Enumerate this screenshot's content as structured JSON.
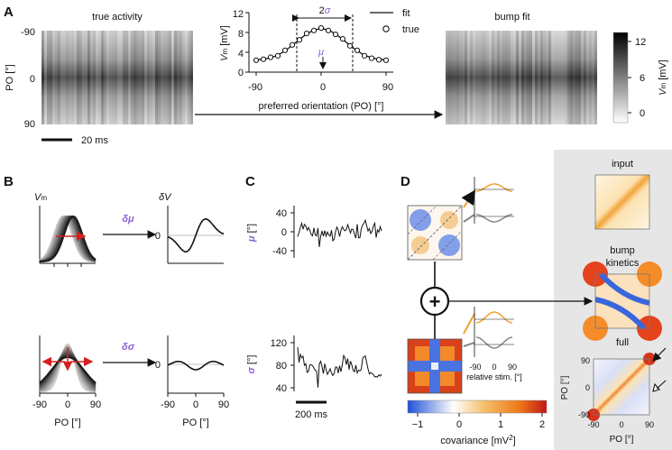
{
  "panels": {
    "a": "A",
    "b": "B",
    "c": "C",
    "d": "D"
  },
  "panel_a": {
    "true_title": "true activity",
    "bump_title": "bump fit",
    "ylabel": "PO [°]",
    "yticks": [
      "-90",
      "0",
      "90"
    ],
    "scale_label": "20 ms",
    "inset_xlabel": "preferred orientation (PO) [°]",
    "inset_ylabel_v": "V",
    "inset_ylabel_sub": "m",
    "inset_ylabel_unit": "[mV]",
    "legend_fit": "fit",
    "legend_true": "true",
    "two": "2",
    "sigma": "σ",
    "mu": "μ",
    "colorbar_ticks": [
      "12",
      "6",
      "0"
    ],
    "colorbar_label_v": "V",
    "colorbar_label_sub": "m",
    "colorbar_label_unit": "[mV]"
  },
  "panel_b": {
    "vm_label_v": "V",
    "vm_label_sub": "m",
    "dv_label": "δV",
    "dmu_label": "δμ",
    "dsigma_label": "δσ",
    "zero": "0",
    "xticks": [
      "-90",
      "0",
      "90"
    ],
    "xlabel": "PO [°]"
  },
  "panel_c": {
    "mu_label": "μ",
    "sigma_label": "σ",
    "deg_unit": "[°]",
    "mu_ticks": [
      "40",
      "0",
      "-40"
    ],
    "sigma_ticks": [
      "120",
      "80",
      "40"
    ],
    "scale_label": "200 ms"
  },
  "panel_d": {
    "plus": "+",
    "relative_stim_label": "relative stim. [°]",
    "relative_stim_ticks": [
      "-90",
      "0",
      "90"
    ],
    "colorbar_ticks": [
      "−1",
      "0",
      "1",
      "2"
    ],
    "colorbar_label": "covariance [mV",
    "colorbar_label_sup": "2",
    "colorbar_label_end": "]",
    "input_title": "input",
    "bump_title_1": "bump",
    "bump_title_2": "kinetics",
    "full_title": "full",
    "full_ylabel": "PO [°]",
    "full_xlabel": "PO [°]",
    "full_ticks": [
      "90",
      "0",
      "-90"
    ],
    "full_xticks": [
      "-90",
      "0",
      "90"
    ]
  },
  "chart_data": {
    "type": "line+scatter",
    "title": "",
    "xlabel": "preferred orientation (PO) [°]",
    "ylabel": "Vm [mV]",
    "xlim": [
      -100,
      100
    ],
    "ylim": [
      0,
      12
    ],
    "xticks": [
      -90,
      0,
      90
    ],
    "yticks": [
      0,
      4,
      8,
      12
    ],
    "series": [
      {
        "name": "fit",
        "style": "line",
        "x": [
          -90,
          -80,
          -70,
          -60,
          -50,
          -40,
          -30,
          -20,
          -10,
          0,
          10,
          20,
          30,
          40,
          50,
          60,
          70,
          80,
          90
        ],
        "y": [
          2.5,
          2.6,
          2.9,
          3.4,
          4.3,
          5.4,
          6.6,
          7.7,
          8.5,
          8.8,
          8.5,
          7.7,
          6.6,
          5.4,
          4.3,
          3.4,
          2.9,
          2.6,
          2.5
        ]
      },
      {
        "name": "true",
        "style": "marker-open-circle",
        "x": [
          -90,
          -80,
          -70,
          -60,
          -50,
          -40,
          -30,
          -20,
          -10,
          0,
          10,
          20,
          30,
          40,
          50,
          60,
          70,
          80,
          90
        ],
        "y": [
          2.4,
          2.6,
          3.0,
          3.3,
          4.4,
          5.5,
          6.5,
          7.8,
          8.4,
          8.9,
          8.4,
          7.6,
          6.7,
          5.3,
          4.4,
          3.3,
          2.8,
          2.5,
          2.4
        ]
      }
    ],
    "annotations": [
      "2σ width marked by dashed lines at ±40°",
      "μ arrow at 0°"
    ]
  }
}
